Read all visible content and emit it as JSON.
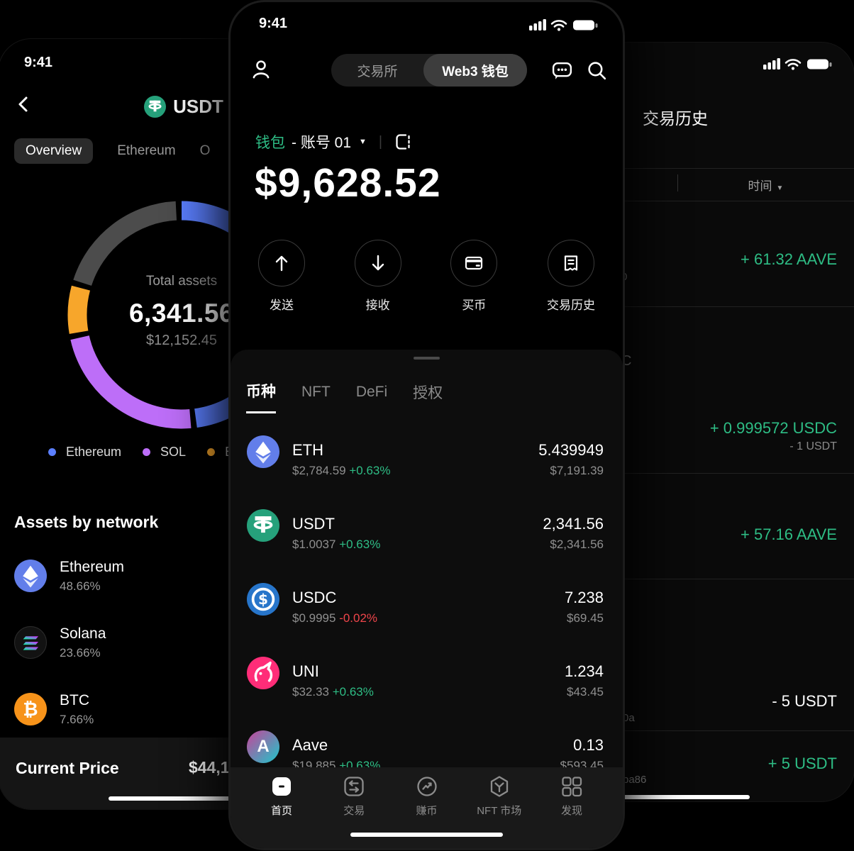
{
  "colors": {
    "green": "#2ebd85",
    "red": "#ef454a",
    "eth_blue": "#627eea",
    "usdt_teal": "#26a17b",
    "usdc_blue": "#2775ca",
    "uni_pink": "#ff2d78",
    "btc_orange": "#f7931a"
  },
  "left_phone": {
    "time": "9:41",
    "title": "USDT",
    "tabs": {
      "overview": "Overview",
      "ethereum": "Ethereum",
      "third": "O"
    },
    "chart_center": {
      "label": "Total assets",
      "total": "6,341.56",
      "usd": "$12,152.45"
    },
    "section_title": "Assets by network",
    "networks": [
      {
        "name": "Ethereum",
        "pct": "48.66%"
      },
      {
        "name": "Solana",
        "pct": "23.66%"
      },
      {
        "name": "BTC",
        "pct": "7.66%"
      }
    ],
    "footer": {
      "label": "Current Price",
      "value": "$44,12"
    }
  },
  "center_phone": {
    "time": "9:41",
    "segmented": {
      "left": "交易所",
      "right": "Web3 钱包"
    },
    "wallet_row": {
      "wallet": "钱包",
      "account": "- 账号 01",
      "caret": "▼"
    },
    "balance": "$9,628.52",
    "actions": [
      {
        "label": "发送"
      },
      {
        "label": "接收"
      },
      {
        "label": "买币"
      },
      {
        "label": "交易历史"
      }
    ],
    "sheet_tabs": [
      {
        "label": "币种"
      },
      {
        "label": "NFT"
      },
      {
        "label": "DeFi"
      },
      {
        "label": "授权"
      }
    ],
    "tokens": [
      {
        "symbol": "ETH",
        "price": "$2,784.59",
        "change": "+0.63%",
        "amount": "5.439949",
        "value": "$7,191.39"
      },
      {
        "symbol": "USDT",
        "price": "$1.0037",
        "change": "+0.63%",
        "amount": "2,341.56",
        "value": "$2,341.56"
      },
      {
        "symbol": "USDC",
        "price": "$0.9995",
        "change": "-0.02%",
        "amount": "7.238",
        "value": "$69.45"
      },
      {
        "symbol": "UNI",
        "price": "$32.33",
        "change": "+0.63%",
        "amount": "1.234",
        "value": "$43.45"
      },
      {
        "symbol": "Aave",
        "price": "$19.885",
        "change": "+0.63%",
        "amount": "0.13",
        "value": "$593.45"
      }
    ],
    "nav": [
      {
        "label": "首页"
      },
      {
        "label": "交易"
      },
      {
        "label": "赚币"
      },
      {
        "label": "NFT 市场"
      },
      {
        "label": "发现"
      }
    ]
  },
  "right_phone": {
    "title": "交易历史",
    "filter_time": "时间",
    "filter_caret": "▼",
    "transactions": [
      {
        "amount": "+ 61.32 AAVE",
        "fragment": "0"
      },
      {
        "amount": "+ 0.999572 USDC",
        "sub": "- 1 USDT",
        "fragment": "C"
      },
      {
        "amount": "+ 57.16 AAVE"
      },
      {
        "amount": "- 5 USDT",
        "fragment": "0a"
      },
      {
        "amount": "+ 5 USDT",
        "fragment": "ba86"
      }
    ]
  },
  "chart_data": {
    "type": "pie",
    "donut": true,
    "title": "Total assets",
    "center_total": "6,341.56",
    "center_usd": "$12,152.45",
    "legend_position": "bottom",
    "legend": [
      "Ethereum",
      "SOL",
      "BTC"
    ],
    "segments": [
      {
        "label": "Ethereum",
        "value": 48.66,
        "color": "#5b7fff"
      },
      {
        "label": "SOL",
        "value": 23.66,
        "color": "#bd6ef8"
      },
      {
        "label": "BTC",
        "value": 7.66,
        "color": "#f7a62b"
      },
      {
        "label": "Other",
        "value": 20.02,
        "color": "#4c4c4c"
      }
    ]
  }
}
